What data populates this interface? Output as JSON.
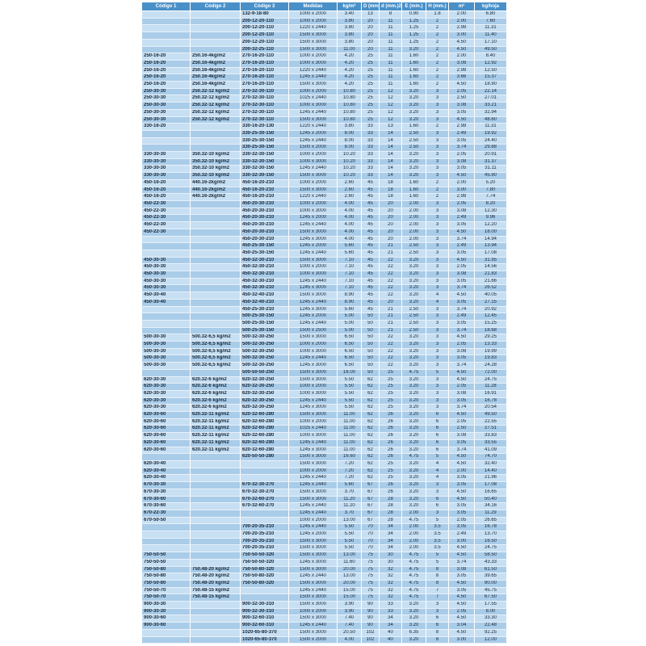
{
  "table": {
    "header": [
      "Código 1",
      "Código 2",
      "Código 3",
      "Medidas",
      "kg/m²",
      "D (mm.)",
      "d (mm.)2",
      "E (mm.)",
      "H (mm.)",
      "m²",
      "kg/hoja"
    ],
    "rows": [
      [
        null,
        null,
        "132-9-18-80",
        "1000 x 2000",
        "3.40",
        "13",
        "8",
        "0.90",
        "1.8",
        "2.00",
        "6.80"
      ],
      [
        null,
        null,
        "200-12-20-110",
        "1000 x 2000",
        "3.80",
        "20",
        "11",
        "1.25",
        "2",
        "2.00",
        "7.60"
      ],
      [
        null,
        null,
        "200-12-20-110",
        "1220 x 2440",
        "3.80",
        "20",
        "11",
        "1.25",
        "2",
        "2.98",
        "11.31"
      ],
      [
        null,
        null,
        "200-12-20-110",
        "1500 x 3000",
        "3.80",
        "20",
        "11",
        "1.25",
        "2",
        "3.00",
        "11.40"
      ],
      [
        null,
        null,
        "200-12-20-110",
        "1500 x 3000",
        "3.80",
        "20",
        "11",
        "1.25",
        "2",
        "4.50",
        "17.10"
      ],
      [
        null,
        null,
        "200-32-25-110",
        "1500 x 3000",
        "11.00",
        "20",
        "11",
        "3.20",
        "2",
        "4.50",
        "49.50"
      ],
      [
        "250-16-20",
        "250.16-4kg/m2",
        "270-16-20-110",
        "1000 x 2000",
        "4.20",
        "25",
        "11",
        "1.60",
        "2",
        "2.00",
        "8.40"
      ],
      [
        "250-16-20",
        "250.16-4kg/m2",
        "270-16-20-110",
        "1000 x 3000",
        "4.20",
        "25",
        "11",
        "1.60",
        "2",
        "3.08",
        "12.92"
      ],
      [
        "250-16-20",
        "250.16-4kg/m2",
        "270-16-20-110",
        "1220 x 2440",
        "4.20",
        "25",
        "11",
        "1.60",
        "2",
        "2.98",
        "12.50"
      ],
      [
        "250-16-20",
        "250.16-4kg/m2",
        "270-16-20-110",
        "1245 x 2440",
        "4.20",
        "25",
        "11",
        "1.60",
        "2",
        "3.66",
        "15.37"
      ],
      [
        "250-16-20",
        "250.16-4kg/m2",
        "270-16-20-110",
        "1500 x 3000",
        "4.20",
        "25",
        "11",
        "1.60",
        "2",
        "4.50",
        "18.90"
      ],
      [
        "250-30-30",
        "250.32-12 kg/m2",
        "270-32-30-110",
        "1000 x 2000",
        "10.80",
        "25",
        "12",
        "3.20",
        "3",
        "2.05",
        "22.14"
      ],
      [
        "250-30-30",
        "250.32-12 kg/m2",
        "270-32-30-110",
        "1025 x 2440",
        "10.80",
        "25",
        "12",
        "3.20",
        "3",
        "2.50",
        "27.01"
      ],
      [
        "250-30-30",
        "250.32-12 kg/m2",
        "270-32-30-110",
        "1000 x 3000",
        "10.80",
        "25",
        "12",
        "3.20",
        "3",
        "3.08",
        "33.21"
      ],
      [
        "250-30-30",
        "250.32-12 kg/m2",
        "270-32-30-110",
        "1245 x 2440",
        "10.80",
        "25",
        "12",
        "3.20",
        "3",
        "3.05",
        "32.94"
      ],
      [
        "250-30-30",
        "250.32-12 kg/m2",
        "270-32-30-110",
        "1500 x 3000",
        "10.80",
        "25",
        "12",
        "3.20",
        "3",
        "4.50",
        "48.60"
      ],
      [
        "330-16-20",
        null,
        "330-16-20-130",
        "1220 x 2440",
        "3.80",
        "33",
        "13",
        "1.60",
        "2",
        "2.98",
        "11.31"
      ],
      [
        null,
        null,
        "330-25-30-150",
        "1245 x 2000",
        "8.00",
        "33",
        "14",
        "2.50",
        "3",
        "2.49",
        "19.92"
      ],
      [
        null,
        null,
        "330-25-30-150",
        "1245 x 2440",
        "8.00",
        "33",
        "14",
        "2.50",
        "3",
        "3.05",
        "24.40"
      ],
      [
        null,
        null,
        "330-25-30-150",
        "1500 x 2000",
        "8.00",
        "33",
        "14",
        "2.50",
        "3",
        "3.74",
        "29.88"
      ],
      [
        "330-30-30",
        "350.32-10 kg/m2",
        "330-32-30-150",
        "1000 x 2000",
        "10.20",
        "33",
        "14",
        "3.20",
        "3",
        "2.05",
        "20.91"
      ],
      [
        "330-30-30",
        "350.32-10 kg/m2",
        "330-32-30-150",
        "1000 x 3000",
        "10.20",
        "33",
        "14",
        "3.20",
        "3",
        "3.08",
        "31.37"
      ],
      [
        "330-30-30",
        "350.32-10 kg/m2",
        "330-32-30-150",
        "1245 x 2440",
        "10.20",
        "33",
        "14",
        "3.20",
        "3",
        "3.05",
        "31.11"
      ],
      [
        "330-30-30",
        "350.32-10 kg/m2",
        "330-32-30-150",
        "1500 x 3000",
        "10.20",
        "33",
        "14",
        "3.20",
        "3",
        "4.50",
        "45.90"
      ],
      [
        "450-16-20",
        "440.16-2kg/m2",
        "450-16-20-210",
        "1000 x 2000",
        "2.60",
        "45",
        "18",
        "1.60",
        "2",
        "2.00",
        "5.20"
      ],
      [
        "450-16-20",
        "440.16-2kg/m2",
        "450-16-20-210",
        "1500 x 3000",
        "2.60",
        "45",
        "18",
        "1.60",
        "2",
        "3.00",
        "7.80"
      ],
      [
        "450-16-20",
        "440.16-2kg/m2",
        "450-16-20-210",
        "1220 x 2440",
        "2.60",
        "45",
        "18",
        "1.60",
        "2",
        "2.98",
        "7.74"
      ],
      [
        "450-22-30",
        null,
        "450-20-30-210",
        "1000 x 2000",
        "4.00",
        "45",
        "20",
        "2.00",
        "3",
        "2.05",
        "8.20"
      ],
      [
        "450-22-30",
        null,
        "450-20-30-210",
        "1000 x 3000",
        "4.00",
        "45",
        "20",
        "2.00",
        "3",
        "3.08",
        "12.30"
      ],
      [
        "450-22-30",
        null,
        "450-20-30-210",
        "1245 x 2000",
        "4.00",
        "45",
        "20",
        "2.00",
        "3",
        "2.49",
        "9.96"
      ],
      [
        "450-22-30",
        null,
        "450-20-30-210",
        "1245 x 2440",
        "4.00",
        "45",
        "20",
        "2.00",
        "3",
        "3.05",
        "12.20"
      ],
      [
        "450-22-30",
        null,
        "450-20-30-210",
        "1500 x 3000",
        "4.00",
        "45",
        "20",
        "2.00",
        "3",
        "4.50",
        "18.00"
      ],
      [
        null,
        null,
        "450-20-30-210",
        "1245 x 3000",
        "4.00",
        "45",
        "20",
        "2.00",
        "3",
        "3.74",
        "14.94"
      ],
      [
        null,
        null,
        "450-25-30-150",
        "1245 x 2000",
        "5.60",
        "45",
        "21",
        "2.50",
        "3",
        "2.49",
        "13.94"
      ],
      [
        null,
        null,
        "450-25-30-150",
        "1245 x 2440",
        "5.60",
        "45",
        "21",
        "2.50",
        "3",
        "3.05",
        "17.08"
      ],
      [
        "450-30-30",
        null,
        "450-32-30-210",
        "1500 x 3000",
        "7.10",
        "45",
        "22",
        "3.20",
        "3",
        "4.50",
        "31.95"
      ],
      [
        "450-30-30",
        null,
        "450-32-30-210",
        "1000 x 2000",
        "7.10",
        "45",
        "22",
        "3.20",
        "3",
        "2.05",
        "14.56"
      ],
      [
        "450-30-30",
        null,
        "450-32-30-210",
        "1000 x 3000",
        "7.10",
        "45",
        "22",
        "3.20",
        "3",
        "3.08",
        "21.83"
      ],
      [
        "450-30-30",
        null,
        "450-32-30-210",
        "1245 x 2440",
        "7.10",
        "45",
        "22",
        "3.20",
        "3",
        "3.05",
        "21.66"
      ],
      [
        "450-30-30",
        null,
        "450-32-30-210",
        "1245 x 3000",
        "7.10",
        "45",
        "22",
        "3.20",
        "3",
        "3.74",
        "26.52"
      ],
      [
        "450-30-40",
        null,
        "450-32-40-210",
        "1500 x 3000",
        "8.90",
        "45",
        "22",
        "3.20",
        "4",
        "4.50",
        "40.05"
      ],
      [
        "450-30-40",
        null,
        "450-32-40-210",
        "1245 x 2440",
        "8.90",
        "45",
        "20",
        "3.20",
        "4",
        "3.05",
        "27.15"
      ],
      [
        null,
        null,
        "450-25-30-210",
        "1245 x 3000",
        "5.60",
        "45",
        "21",
        "2.50",
        "3",
        "3.74",
        "20.92"
      ],
      [
        null,
        null,
        "500-25-30-150",
        "1245 x 2000",
        "5.00",
        "50",
        "21",
        "2.50",
        "3",
        "2.49",
        "12.45"
      ],
      [
        null,
        null,
        "500-25-30-150",
        "1245 x 2440",
        "5.00",
        "50",
        "21",
        "2.50",
        "3",
        "3.05",
        "15.25"
      ],
      [
        null,
        null,
        "500-25-30-150",
        "1500 x 2500",
        "5.00",
        "50",
        "21",
        "2.50",
        "3",
        "3.74",
        "18.68"
      ],
      [
        "500-30-30",
        "500.32-6,5 kg/m2",
        "500-32-30-250",
        "1500 x 3000",
        "6.50",
        "50",
        "22",
        "3.20",
        "3",
        "4.50",
        "29.25"
      ],
      [
        "500-30-30",
        "500.32-6,5 kg/m2",
        "500-32-30-250",
        "1000 x 2000",
        "6.50",
        "50",
        "22",
        "3.20",
        "3",
        "2.05",
        "13.33"
      ],
      [
        "500-30-30",
        "500.32-6,5 kg/m2",
        "500-32-30-250",
        "1000 x 3000",
        "6.50",
        "50",
        "22",
        "3.20",
        "3",
        "3.08",
        "19.99"
      ],
      [
        "500-30-30",
        "500.32-6,5 kg/m2",
        "500-32-30-250",
        "1245 x 2440",
        "6.50",
        "50",
        "22",
        "3.20",
        "3",
        "3.05",
        "19.83"
      ],
      [
        "500-30-30",
        "500.32-6,5 kg/m2",
        "500-32-30-250",
        "1245 x 3000",
        "6.50",
        "50",
        "22",
        "3.20",
        "3",
        "3.74",
        "24.28"
      ],
      [
        null,
        null,
        "500-50-50-250",
        "1500 x 3000",
        "16.00",
        "50",
        "25",
        "4.75",
        "5",
        "4.50",
        "72.00"
      ],
      [
        "620-30-30",
        "620.32-6 kg/m2",
        "620-32-30-250",
        "1500 x 3000",
        "5.50",
        "62",
        "25",
        "3.20",
        "3",
        "4.50",
        "24.75"
      ],
      [
        "620-30-30",
        "620.32-6 kg/m2",
        "620-32-30-250",
        "1000 x 2000",
        "5.50",
        "62",
        "25",
        "3.20",
        "3",
        "2.05",
        "11.28"
      ],
      [
        "620-30-30",
        "620.32-6 kg/m2",
        "620-32-30-250",
        "1000 x 3000",
        "5.50",
        "62",
        "25",
        "3.20",
        "3",
        "3.08",
        "16.91"
      ],
      [
        "620-30-30",
        "620.32-6 kg/m2",
        "620-32-30-250",
        "1245 x 2440",
        "5.50",
        "62",
        "25",
        "3.20",
        "3",
        "3.05",
        "16.78"
      ],
      [
        "620-30-30",
        "620.32-6 kg/m2",
        "620-32-30-250",
        "1245 x 3000",
        "5.50",
        "62",
        "25",
        "3.20",
        "3",
        "3.74",
        "20.54"
      ],
      [
        "620-30-60",
        "620.32-11 kg/m2",
        "620-32-60-280",
        "1500 x 3000",
        "11.00",
        "62",
        "26",
        "3.20",
        "6",
        "4.50",
        "49.50"
      ],
      [
        "620-30-60",
        "620.32-11 kg/m2",
        "620-32-60-280",
        "1000 x 2000",
        "11.00",
        "62",
        "26",
        "3.20",
        "6",
        "2.05",
        "22.55"
      ],
      [
        "620-30-60",
        "620.32-11 kg/m2",
        "620-32-60-280",
        "1025 x 2440",
        "11.00",
        "62",
        "26",
        "3.20",
        "6",
        "2.50",
        "27.51"
      ],
      [
        "620-30-60",
        "620.32-11 kg/m2",
        "620-32-60-280",
        "1000 x 3000",
        "11.00",
        "62",
        "26",
        "3.20",
        "6",
        "3.08",
        "33.83"
      ],
      [
        "620-30-60",
        "620.32-11 kg/m2",
        "620-32-60-280",
        "1245 x 2440",
        "11.00",
        "62",
        "26",
        "3.20",
        "6",
        "3.05",
        "33.55"
      ],
      [
        "620-30-60",
        "620.32-11 kg/m2",
        "620-32-60-280",
        "1245 x 3000",
        "11.00",
        "62",
        "26",
        "3.20",
        "6",
        "3.74",
        "41.09"
      ],
      [
        null,
        null,
        "620-50-50-280",
        "1500 x 3000",
        "16.60",
        "62",
        "26",
        "4.75",
        "5",
        "4.50",
        "74.70"
      ],
      [
        "620-30-40",
        null,
        null,
        "1500 x 3000",
        "7.20",
        "62",
        "25",
        "3.20",
        "4",
        "4.50",
        "32.40"
      ],
      [
        "620-30-40",
        null,
        null,
        "1000 x 2000",
        "7.20",
        "62",
        "25",
        "3.20",
        "4",
        "2.00",
        "14.40"
      ],
      [
        "620-30-40",
        null,
        null,
        "1245 x 2440",
        "7.20",
        "62",
        "25",
        "3.20",
        "4",
        "3.05",
        "21.96"
      ],
      [
        "670-30-30",
        null,
        "670-32-30-270",
        "1245 x 2440",
        "5.60",
        "67",
        "26",
        "3.20",
        "3",
        "3.05",
        "17.08"
      ],
      [
        "670-30-30",
        null,
        "670-32-30-270",
        "1500 x 3000",
        "3.70",
        "67",
        "26",
        "3.20",
        "3",
        "4.50",
        "16.65"
      ],
      [
        "670-30-60",
        null,
        "670-32-60-270",
        "1500 x 3000",
        "11.20",
        "67",
        "28",
        "3.20",
        "6",
        "4.50",
        "50.40"
      ],
      [
        "670-30-60",
        null,
        "670-32-60-270",
        "1245 x 2440",
        "11.20",
        "67",
        "28",
        "3.20",
        "6",
        "3.05",
        "34.16"
      ],
      [
        "670-22-30",
        null,
        null,
        "1245 x 2440",
        "3.70",
        "67",
        "28",
        "2.00",
        "3",
        "3.05",
        "11.29"
      ],
      [
        "670-50-50",
        null,
        null,
        "1000 x 2000",
        "13.00",
        "67",
        "28",
        "4.75",
        "5",
        "2.05",
        "26.65"
      ],
      [
        null,
        null,
        "700-20-35-210",
        "1245 x 2440",
        "5.50",
        "70",
        "34",
        "2.00",
        "3.5",
        "3.05",
        "16.78"
      ],
      [
        null,
        null,
        "700-20-35-210",
        "1245 x 2000",
        "5.50",
        "70",
        "34",
        "2.00",
        "3.5",
        "2.49",
        "13.70"
      ],
      [
        null,
        null,
        "700-20-35-210",
        "1500 x 3000",
        "5.50",
        "70",
        "34",
        "2.00",
        "3.5",
        "3.00",
        "16.50"
      ],
      [
        null,
        null,
        "700-20-35-210",
        "1500 x 3000",
        "5.50",
        "70",
        "34",
        "2.00",
        "3.5",
        "4.50",
        "24.75"
      ],
      [
        "750-50-50",
        null,
        "750-50-50-320",
        "1500 x 3000",
        "13.00",
        "75",
        "30",
        "4.75",
        "5",
        "4.50",
        "58.50"
      ],
      [
        "750-50-50",
        null,
        "750-50-50-320",
        "1245 x 3000",
        "11.60",
        "75",
        "30",
        "4.75",
        "5",
        "3.74",
        "43.33"
      ],
      [
        "750-50-80",
        "750.48-20 kg/m2",
        "750-50-80-320",
        "1500 x 3000",
        "20.00",
        "75",
        "32",
        "4.75",
        "8",
        "3.08",
        "61.50"
      ],
      [
        "750-50-80",
        "750.48-20 kg/m2",
        "750-50-80-320",
        "1245 x 2440",
        "13.00",
        "75",
        "32",
        "4.75",
        "8",
        "3.05",
        "39.65"
      ],
      [
        "750-50-80",
        "750.48-20 kg/m2",
        "750-50-80-320",
        "1500 x 3000",
        "20.00",
        "75",
        "32",
        "4.75",
        "8",
        "4.50",
        "90.00"
      ],
      [
        "750-50-70",
        "750.48-15 kg/m2",
        null,
        "1245 x 2440",
        "15.00",
        "75",
        "32",
        "4.75",
        "7",
        "3.05",
        "45.75"
      ],
      [
        "750-50-70",
        "750.48-15 kg/m2",
        null,
        "1500 x 3000",
        "15.00",
        "75",
        "32",
        "4.75",
        "7",
        "4.50",
        "67.50"
      ],
      [
        "900-30-30",
        null,
        "900-32-30-310",
        "1500 x 3000",
        "3.90",
        "90",
        "33",
        "3.20",
        "3",
        "4.50",
        "17.55"
      ],
      [
        "900-30-30",
        null,
        "900-32-30-310",
        "1000 x 2000",
        "3.90",
        "90",
        "33",
        "3.20",
        "3",
        "2.05",
        "8.00"
      ],
      [
        "900-30-60",
        null,
        "900-32-60-310",
        "1500 x 3000",
        "7.40",
        "90",
        "34",
        "3.20",
        "6",
        "4.50",
        "33.30"
      ],
      [
        "900-30-60",
        null,
        "900-32-60-310",
        "1245 x 2440",
        "7.40",
        "90",
        "34",
        "3.20",
        "6",
        "3.04",
        "22.48"
      ],
      [
        null,
        null,
        "1020-65-80-370",
        "1500 x 3000",
        "20.50",
        "102",
        "40",
        "6.35",
        "8",
        "4.50",
        "92.25"
      ],
      [
        null,
        null,
        "1020-65-80-370",
        "1500 x 2000",
        "4.00",
        "102",
        "40",
        "3.20",
        "8",
        "3.00",
        "12.00"
      ]
    ]
  }
}
